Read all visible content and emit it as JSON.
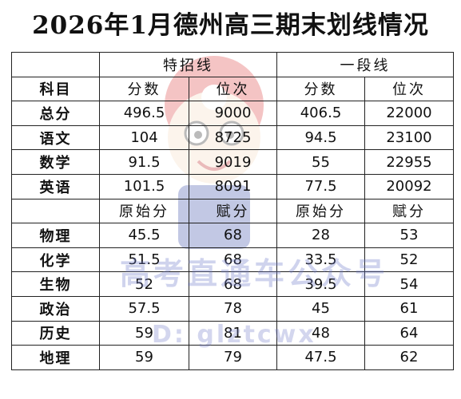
{
  "title": "2026年1月德州高三期末划线情况",
  "groups": {
    "tezhao": "特招线",
    "yiduan": "一段线"
  },
  "header_row": [
    "科目",
    "分数",
    "位次",
    "分数",
    "位次"
  ],
  "subheader_row": [
    "",
    "原始分",
    "赋分",
    "原始分",
    "赋分"
  ],
  "rows_top": [
    [
      "总分",
      "496.5",
      "9000",
      "406.5",
      "22000"
    ],
    [
      "语文",
      "104",
      "8725",
      "94.5",
      "23100"
    ],
    [
      "数学",
      "91.5",
      "9019",
      "55",
      "22955"
    ],
    [
      "英语",
      "101.5",
      "8091",
      "77.5",
      "20092"
    ]
  ],
  "rows_bottom": [
    [
      "物理",
      "45.5",
      "68",
      "28",
      "53"
    ],
    [
      "化学",
      "51.5",
      "68",
      "33.5",
      "52"
    ],
    [
      "生物",
      "52",
      "68",
      "39.5",
      "54"
    ],
    [
      "政治",
      "57.5",
      "78",
      "45",
      "61"
    ],
    [
      "历史",
      "59",
      "81",
      "48",
      "64"
    ],
    [
      "地理",
      "59",
      "79",
      "47.5",
      "62"
    ]
  ],
  "watermark": {
    "line1": "高考直通车公众号",
    "line2": "D: glztcwx"
  },
  "colors": {
    "watermark": "#6e78c8",
    "mascot_accent": "#e05050",
    "border": "#222222"
  }
}
